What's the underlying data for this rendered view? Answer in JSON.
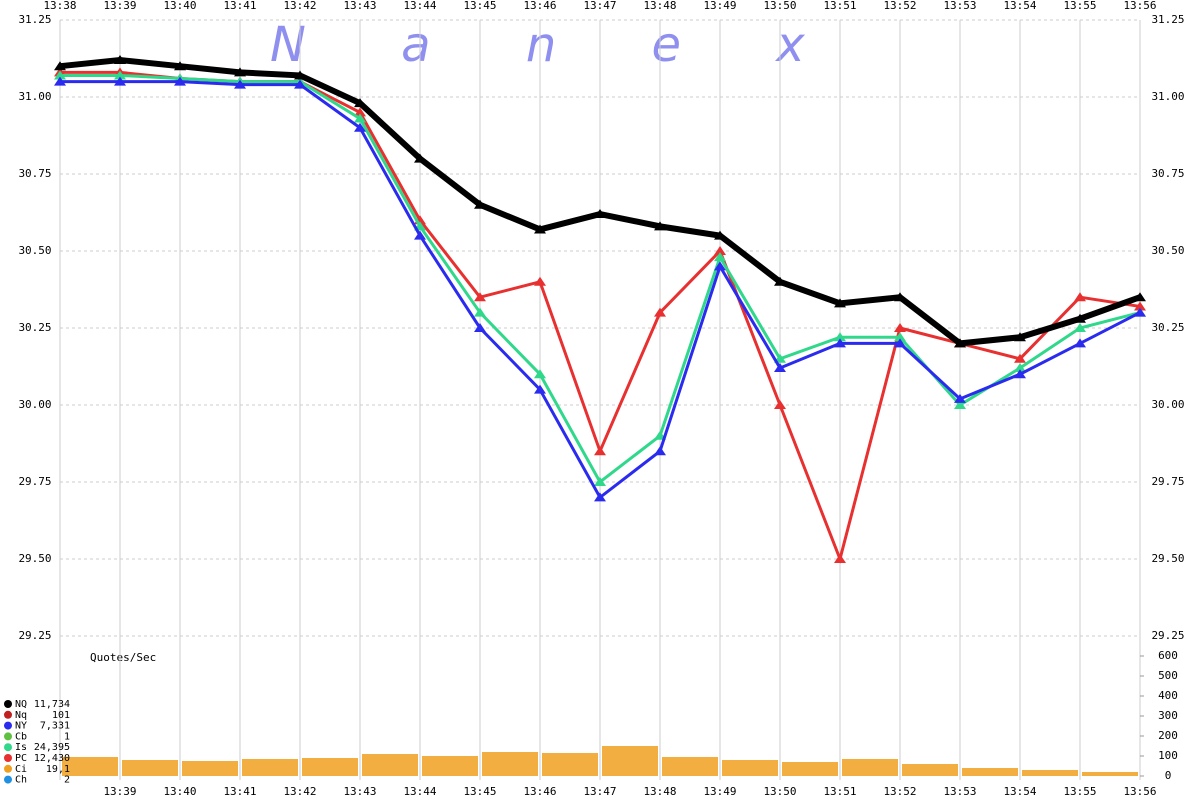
{
  "chart_data": [
    {
      "type": "line",
      "watermark": "N a n e x",
      "categories": [
        "13:38",
        "13:39",
        "13:40",
        "13:41",
        "13:42",
        "13:43",
        "13:44",
        "13:45",
        "13:46",
        "13:47",
        "13:48",
        "13:49",
        "13:50",
        "13:51",
        "13:52",
        "13:53",
        "13:54",
        "13:55",
        "13:56"
      ],
      "ylim": [
        29.25,
        31.25
      ],
      "yticks": [
        {
          "value": 29.25,
          "label": "29.25"
        },
        {
          "value": 29.5,
          "label": "29.50"
        },
        {
          "value": 29.75,
          "label": "29.75"
        },
        {
          "value": 30,
          "label": "30.00"
        },
        {
          "value": 30.25,
          "label": "30.25"
        },
        {
          "value": 30.5,
          "label": "30.50"
        },
        {
          "value": 30.75,
          "label": "30.75"
        },
        {
          "value": 31,
          "label": "31.00"
        },
        {
          "value": 31.25,
          "label": "31.25"
        }
      ],
      "grid": true,
      "series": [
        {
          "name": "PC",
          "color": "#e83030",
          "values": [
            31.08,
            31.08,
            31.06,
            31.05,
            31.05,
            30.95,
            30.6,
            30.35,
            30.4,
            29.85,
            30.3,
            30.5,
            30.0,
            29.5,
            30.25,
            30.2,
            30.15,
            30.35,
            30.32
          ]
        },
        {
          "name": "Is",
          "color": "#2fd88a",
          "values": [
            31.07,
            31.07,
            31.06,
            31.05,
            31.05,
            30.93,
            30.58,
            30.3,
            30.1,
            29.75,
            29.9,
            30.48,
            30.15,
            30.22,
            30.22,
            30.0,
            30.12,
            30.25,
            30.3
          ]
        },
        {
          "name": "NY",
          "color": "#2b2bf0",
          "values": [
            31.05,
            31.05,
            31.05,
            31.04,
            31.04,
            30.9,
            30.55,
            30.25,
            30.05,
            29.7,
            29.85,
            30.45,
            30.12,
            30.2,
            30.2,
            30.02,
            30.1,
            30.2,
            30.3
          ]
        },
        {
          "name": "NQ",
          "color": "#000000",
          "values": [
            31.1,
            31.12,
            31.1,
            31.08,
            31.07,
            30.98,
            30.8,
            30.65,
            30.57,
            30.62,
            30.58,
            30.55,
            30.4,
            30.33,
            30.35,
            30.2,
            30.22,
            30.28,
            30.35
          ]
        }
      ]
    },
    {
      "type": "bar",
      "title": "Quotes/Sec",
      "color": "#f0a020",
      "categories": [
        "13:39",
        "13:40",
        "13:41",
        "13:42",
        "13:43",
        "13:44",
        "13:45",
        "13:46",
        "13:47",
        "13:48",
        "13:49",
        "13:50",
        "13:51",
        "13:52",
        "13:53",
        "13:54",
        "13:55",
        "13:56"
      ],
      "values": [
        95,
        80,
        75,
        85,
        90,
        110,
        100,
        120,
        115,
        150,
        95,
        80,
        70,
        85,
        60,
        40,
        30,
        20
      ],
      "ylim": [
        0,
        600
      ],
      "yticks": [
        0,
        100,
        200,
        300,
        400,
        500,
        600
      ],
      "legend": [
        {
          "name": "NQ",
          "count": "11,734",
          "color": "#000000"
        },
        {
          "name": "Nq",
          "count": "101",
          "color": "#c02020"
        },
        {
          "name": "NY",
          "count": "7,331",
          "color": "#2b2bf0"
        },
        {
          "name": "Cb",
          "count": "1",
          "color": "#60c040"
        },
        {
          "name": "Is",
          "count": "24,395",
          "color": "#2fd88a"
        },
        {
          "name": "PC",
          "count": "12,430",
          "color": "#e83030"
        },
        {
          "name": "Ci",
          "count": "19,1",
          "color": "#f0a020"
        },
        {
          "name": "Ch",
          "count": "2",
          "color": "#2090e0"
        }
      ]
    }
  ]
}
